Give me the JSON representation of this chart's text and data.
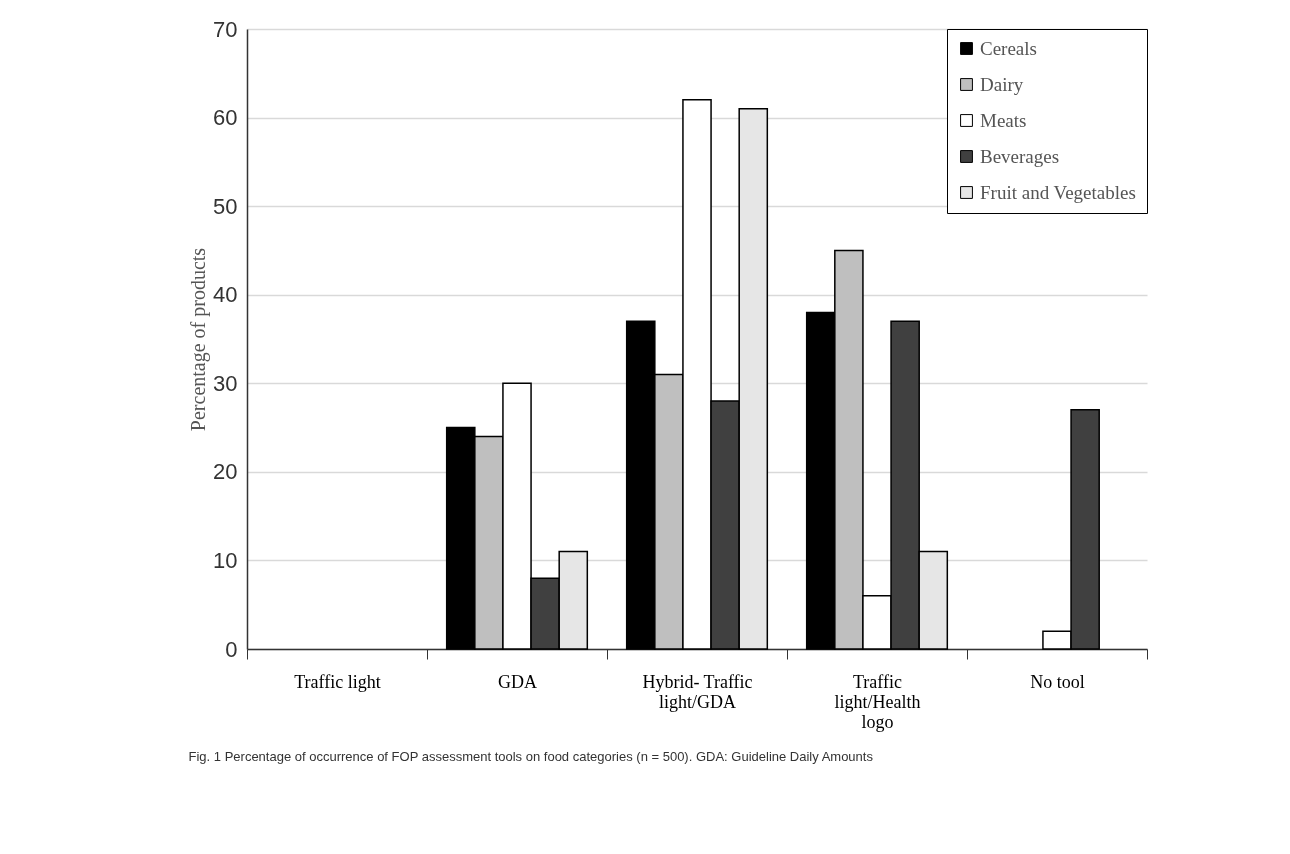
{
  "chart_data": {
    "type": "bar",
    "ylabel": "Percentage of products",
    "categories": [
      "Traffic light",
      "GDA",
      "Hybrid- Traffic light/GDA",
      "Traffic light/Health logo",
      "No tool"
    ],
    "series": [
      {
        "name": "Cereals",
        "color": "#000000",
        "values": [
          0,
          25,
          37,
          38,
          0
        ]
      },
      {
        "name": "Dairy",
        "color": "#bfbfbf",
        "values": [
          0,
          24,
          31,
          45,
          0
        ]
      },
      {
        "name": "Meats",
        "color": "#ffffff",
        "values": [
          0,
          30,
          62,
          6,
          2
        ]
      },
      {
        "name": "Beverages",
        "color": "#404040",
        "values": [
          0,
          8,
          28,
          37,
          27
        ]
      },
      {
        "name": "Fruit and Vegetables",
        "color": "#e6e6e6",
        "values": [
          0,
          11,
          61,
          11,
          0
        ]
      }
    ],
    "ylim": [
      0,
      70
    ],
    "yticks": [
      0,
      10,
      20,
      30,
      40,
      50,
      60,
      70
    ],
    "grid": "y",
    "legend": "top right",
    "annotations": [
      "Fig. 1 Percentage of occurrence of FOP assessment tools on food categories (n = 500). GDA: Guideline Daily Amounts"
    ]
  }
}
